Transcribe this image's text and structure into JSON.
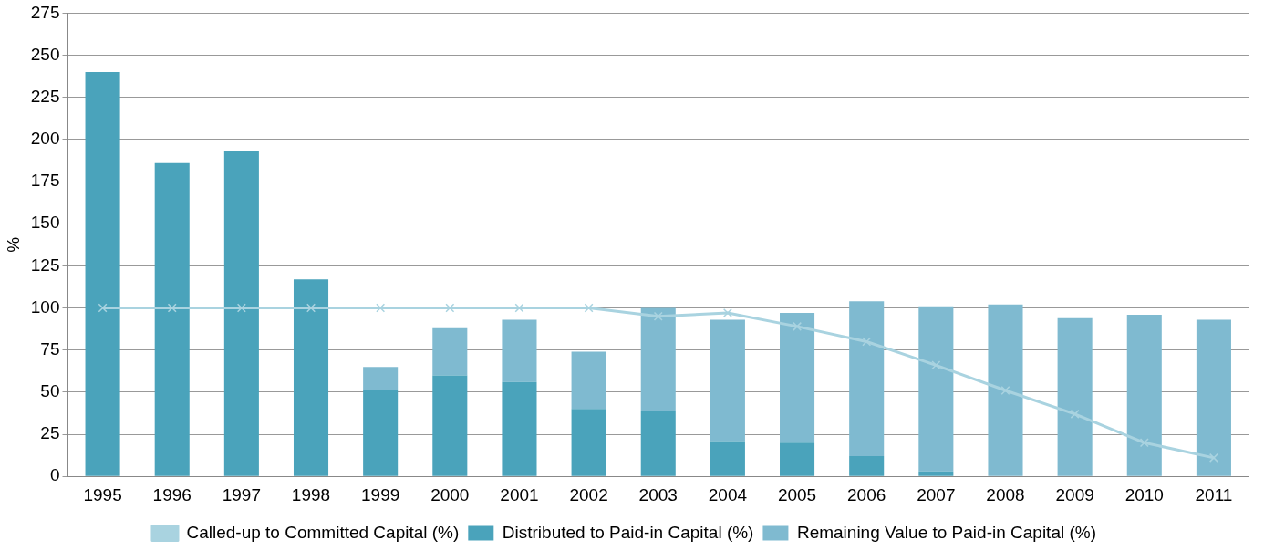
{
  "chart_data": {
    "type": "bar",
    "stacked": true,
    "ylabel": "%",
    "categories": [
      "1995",
      "1996",
      "1997",
      "1998",
      "1999",
      "2000",
      "2001",
      "2002",
      "2003",
      "2004",
      "2005",
      "2006",
      "2007",
      "2008",
      "2009",
      "2010",
      "2011"
    ],
    "series": [
      {
        "name": "Distributed to Paid-in Capital (%)",
        "color": "#4aa3bb",
        "values": [
          240,
          186,
          193,
          117,
          51,
          60,
          56,
          40,
          39,
          21,
          20,
          12,
          3,
          0,
          0,
          0,
          0
        ]
      },
      {
        "name": "Remaining Value to Paid-in Capital (%)",
        "color": "#7fbad0",
        "values": [
          0,
          0,
          0,
          0,
          14,
          28,
          37,
          34,
          61,
          72,
          77,
          92,
          98,
          102,
          94,
          96,
          93
        ]
      },
      {
        "name": "Called-up to Committed Capital (%)",
        "type": "line",
        "color": "#a9d3e0",
        "marker": "cross",
        "line_style": "solid",
        "values": [
          100,
          100,
          100,
          100,
          100,
          100,
          100,
          100,
          95,
          97,
          89,
          80,
          66,
          51,
          37,
          20,
          11
        ]
      }
    ],
    "ylim": [
      0,
      275
    ],
    "yticks": [
      0,
      25,
      50,
      75,
      100,
      125,
      150,
      175,
      200,
      225,
      250,
      275
    ],
    "grid": "y",
    "legend": "bottom"
  }
}
